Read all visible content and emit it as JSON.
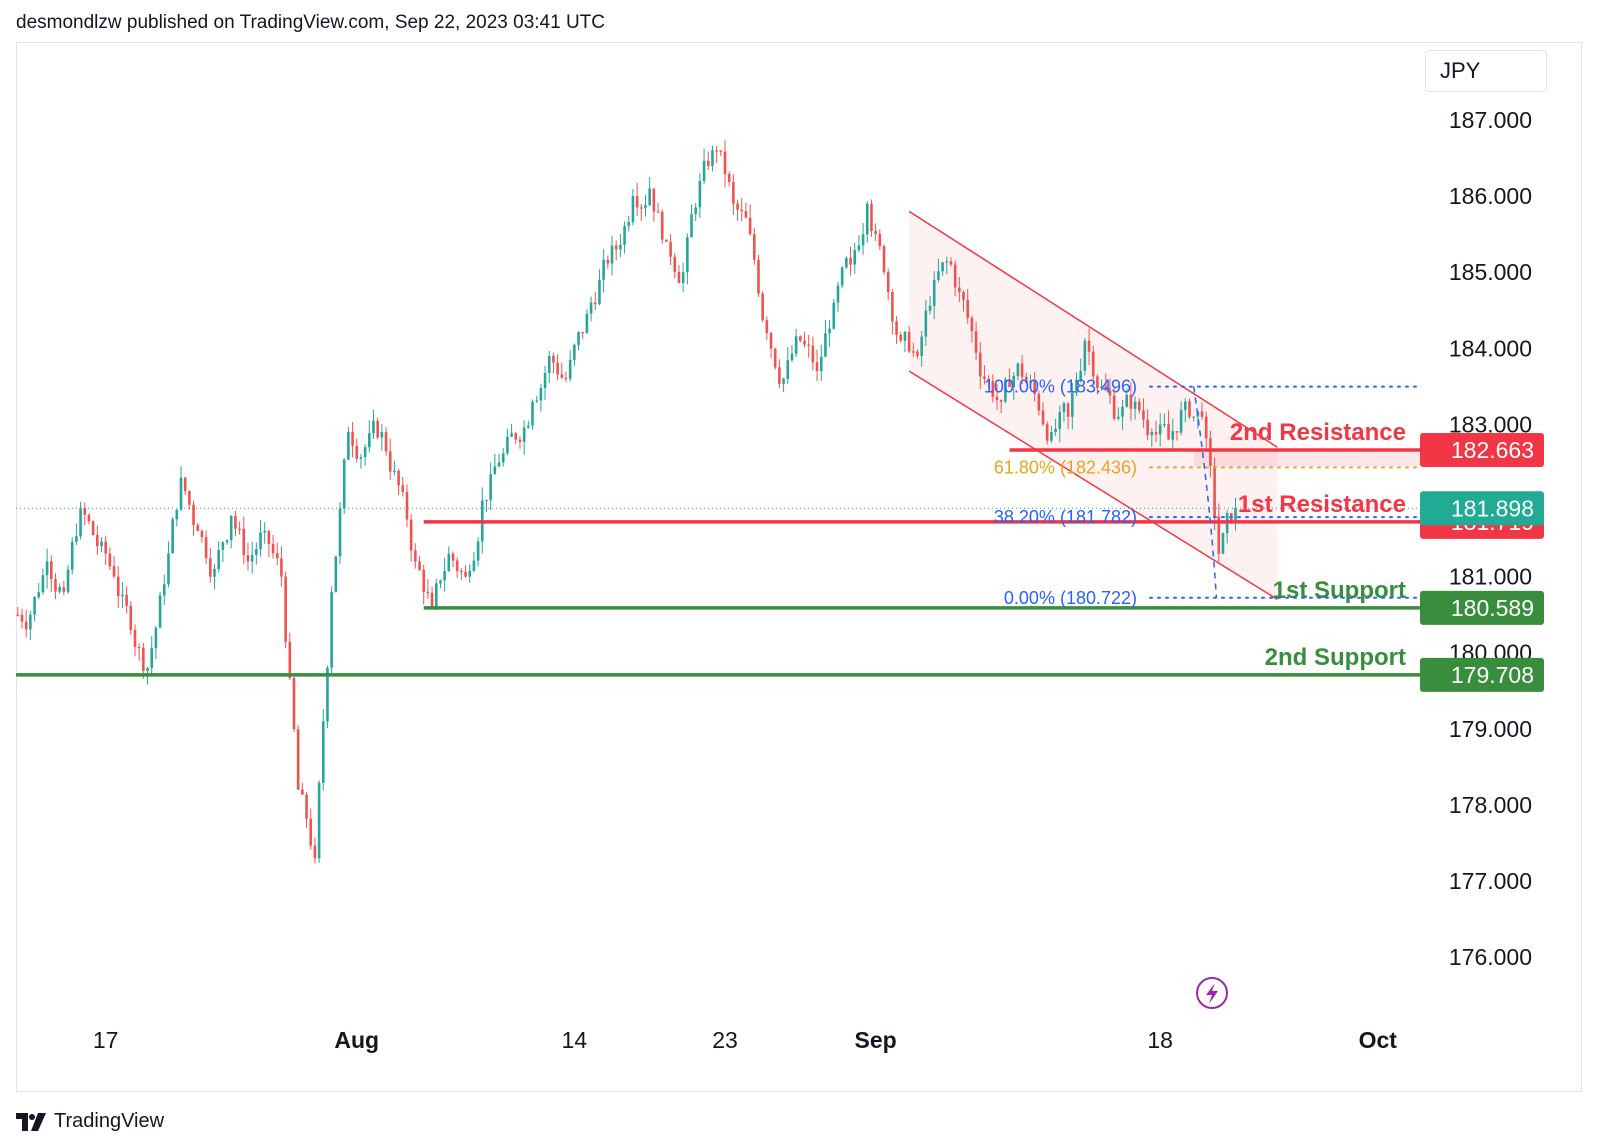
{
  "header": {
    "publisher_line": "desmondlzw published on TradingView.com, Sep 22, 2023 03:41 UTC"
  },
  "footer": {
    "brand": "TradingView"
  },
  "currency_label": "JPY",
  "colors": {
    "up": "#26a69a",
    "down": "#ef5350",
    "resistance": "#f23645",
    "support": "#388e3c",
    "fib_blue": "#2962ff",
    "fib_gold": "#e5a51e",
    "channel": "#f23645",
    "price_badge": "#22ab94",
    "alert": "#9c27b0"
  },
  "chart_data": {
    "type": "candlestick",
    "symbol_currency": "JPY",
    "y_ticks": [
      187,
      186,
      185,
      184,
      183,
      182,
      181,
      180,
      179,
      178,
      177,
      176
    ],
    "y_tick_labels": [
      "187.000",
      "186.000",
      "185.000",
      "184.000",
      "183.000",
      "182.000",
      "181.000",
      "180.000",
      "179.000",
      "178.000",
      "177.000",
      "176.000"
    ],
    "x_tick_labels": [
      "17",
      "Aug",
      "14",
      "23",
      "Sep",
      "18",
      "Oct"
    ],
    "x_tick_dates": [
      "2023-07-17",
      "2023-08-01",
      "2023-08-14",
      "2023-08-23",
      "2023-09-01",
      "2023-09-18",
      "2023-10-01"
    ],
    "ylim": [
      175.6,
      188.0
    ],
    "xlim": [
      "2023-07-12",
      "2023-10-04"
    ],
    "close_series": [
      [
        "2023-07-12",
        180.5
      ],
      [
        "2023-07-13",
        181.2
      ],
      [
        "2023-07-14",
        180.8
      ],
      [
        "2023-07-15",
        181.9
      ],
      [
        "2023-07-16",
        181.4
      ],
      [
        "2023-07-17",
        181.0
      ],
      [
        "2023-07-18",
        180.3
      ],
      [
        "2023-07-19",
        179.8
      ],
      [
        "2023-07-20",
        180.9
      ],
      [
        "2023-07-21",
        182.3
      ],
      [
        "2023-07-22",
        181.6
      ],
      [
        "2023-07-23",
        181.1
      ],
      [
        "2023-07-24",
        181.8
      ],
      [
        "2023-07-25",
        181.2
      ],
      [
        "2023-07-26",
        181.6
      ],
      [
        "2023-07-27",
        181.0
      ],
      [
        "2023-07-28",
        178.2
      ],
      [
        "2023-07-29",
        177.3
      ],
      [
        "2023-07-30",
        180.8
      ],
      [
        "2023-07-31",
        182.9
      ],
      [
        "2023-08-01",
        182.7
      ],
      [
        "2023-08-02",
        182.9
      ],
      [
        "2023-08-03",
        182.2
      ],
      [
        "2023-08-04",
        181.2
      ],
      [
        "2023-08-05",
        180.6
      ],
      [
        "2023-08-06",
        181.3
      ],
      [
        "2023-08-07",
        181.0
      ],
      [
        "2023-08-08",
        182.0
      ],
      [
        "2023-08-09",
        182.5
      ],
      [
        "2023-08-10",
        182.8
      ],
      [
        "2023-08-11",
        183.3
      ],
      [
        "2023-08-12",
        183.9
      ],
      [
        "2023-08-13",
        183.6
      ],
      [
        "2023-08-14",
        184.2
      ],
      [
        "2023-08-15",
        184.9
      ],
      [
        "2023-08-16",
        185.3
      ],
      [
        "2023-08-17",
        186.0
      ],
      [
        "2023-08-18",
        186.1
      ],
      [
        "2023-08-19",
        185.4
      ],
      [
        "2023-08-20",
        185.0
      ],
      [
        "2023-08-21",
        186.2
      ],
      [
        "2023-08-22",
        186.6
      ],
      [
        "2023-08-23",
        185.9
      ],
      [
        "2023-08-24",
        185.5
      ],
      [
        "2023-08-25",
        184.2
      ],
      [
        "2023-08-26",
        183.6
      ],
      [
        "2023-08-27",
        184.1
      ],
      [
        "2023-08-28",
        183.7
      ],
      [
        "2023-08-29",
        184.6
      ],
      [
        "2023-08-30",
        185.1
      ],
      [
        "2023-08-31",
        185.9
      ],
      [
        "2023-09-01",
        185.0
      ],
      [
        "2023-09-02",
        184.1
      ],
      [
        "2023-09-03",
        183.9
      ],
      [
        "2023-09-04",
        184.9
      ],
      [
        "2023-09-05",
        185.1
      ],
      [
        "2023-09-06",
        184.4
      ],
      [
        "2023-09-07",
        183.6
      ],
      [
        "2023-09-08",
        183.3
      ],
      [
        "2023-09-09",
        183.8
      ],
      [
        "2023-09-10",
        183.4
      ],
      [
        "2023-09-11",
        182.9
      ],
      [
        "2023-09-12",
        183.1
      ],
      [
        "2023-09-13",
        184.1
      ],
      [
        "2023-09-14",
        183.5
      ],
      [
        "2023-09-15",
        183.1
      ],
      [
        "2023-09-16",
        183.3
      ],
      [
        "2023-09-17",
        182.9
      ],
      [
        "2023-09-18",
        182.8
      ],
      [
        "2023-09-19",
        183.3
      ],
      [
        "2023-09-20",
        183.1
      ],
      [
        "2023-09-21",
        181.3
      ],
      [
        "2023-09-22",
        181.9
      ]
    ],
    "levels": [
      {
        "label": "2nd Resistance",
        "value": 182.663,
        "value_label": "182.663",
        "kind": "resistance"
      },
      {
        "label": "1st Resistance",
        "value": 181.719,
        "value_label": "181.719",
        "kind": "resistance"
      },
      {
        "label": "1st Support",
        "value": 180.589,
        "value_label": "180.589",
        "kind": "support"
      },
      {
        "label": "2nd Support",
        "value": 179.708,
        "value_label": "179.708",
        "kind": "support"
      }
    ],
    "current_price": {
      "value": 181.898,
      "value_label": "181.898"
    },
    "fibonacci": [
      {
        "label": "100.00% (183.496)",
        "value": 183.496,
        "color": "blue"
      },
      {
        "label": "61.80% (182.436)",
        "value": 182.436,
        "color": "gold"
      },
      {
        "label": "38.20% (181.782)",
        "value": 181.782,
        "color": "blue"
      },
      {
        "label": "0.00% (180.722)",
        "value": 180.722,
        "color": "blue"
      }
    ],
    "channel": {
      "upper": [
        [
          "2023-09-03",
          185.8
        ],
        [
          "2023-09-25",
          182.7
        ]
      ],
      "lower": [
        [
          "2023-09-03",
          183.7
        ],
        [
          "2023-09-25",
          180.7
        ]
      ]
    },
    "legend_position": "none",
    "grid": false
  }
}
